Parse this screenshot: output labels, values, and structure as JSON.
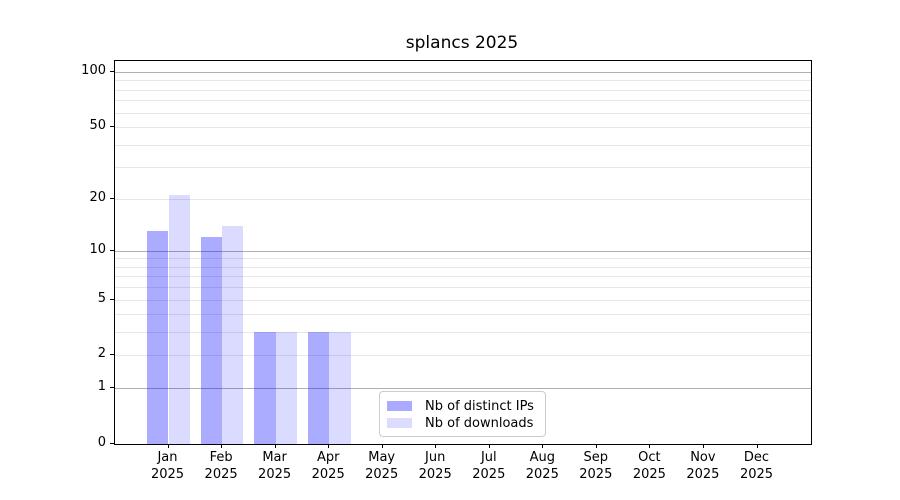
{
  "chart_data": {
    "type": "bar",
    "title": "splancs 2025",
    "categories": [
      "Jan 2025",
      "Feb 2025",
      "Mar 2025",
      "Apr 2025",
      "May 2025",
      "Jun 2025",
      "Jul 2025",
      "Aug 2025",
      "Sep 2025",
      "Oct 2025",
      "Nov 2025",
      "Dec 2025"
    ],
    "series": [
      {
        "name": "Nb of distinct IPs",
        "values": [
          13,
          12,
          3,
          3,
          0,
          0,
          0,
          0,
          0,
          0,
          0,
          0
        ]
      },
      {
        "name": "Nb of downloads",
        "values": [
          21,
          14,
          3,
          3,
          0,
          0,
          0,
          0,
          0,
          0,
          0,
          0
        ]
      }
    ],
    "xlabel": "",
    "ylabel": "",
    "y_scale": "log1p",
    "ylim": [
      0,
      100
    ],
    "y_ticks": [
      0,
      1,
      2,
      5,
      10,
      20,
      50,
      100
    ],
    "y_major_gridlines": [
      1,
      10,
      100
    ],
    "y_minor_gridlines": [
      2,
      3,
      4,
      5,
      6,
      7,
      8,
      9,
      20,
      30,
      40,
      50,
      60,
      70,
      80,
      90
    ],
    "grid": true,
    "legend_position": "bottom-center"
  },
  "colors": {
    "ips_fill": "rgba(0,0,255,0.33)",
    "downloads_fill": "rgba(0,0,255,0.14)",
    "ips_swatch": "#aaaaff",
    "downloads_swatch": "#dcdcff",
    "grid_major": "#b0b0b0",
    "grid_minor": "#e7e7e7",
    "axis": "#000000"
  }
}
